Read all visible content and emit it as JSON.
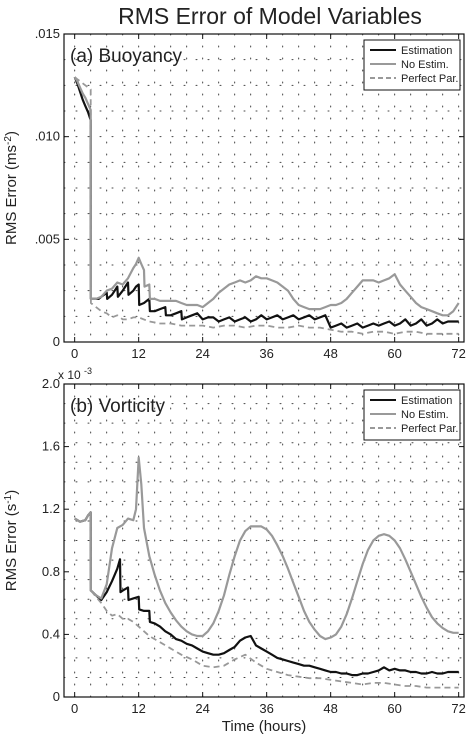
{
  "figure_title": "RMS Error of Model Variables",
  "chart_data": [
    {
      "type": "line",
      "panel_label": "(a)  Buoyancy",
      "title": "RMS Error of Model Variables",
      "xlabel": "",
      "ylabel": "RMS Error (ms",
      "ylabel_sup": "-2",
      "ylabel_tail": ")",
      "xlim": [
        -2,
        73
      ],
      "ylim": [
        0,
        0.015
      ],
      "xticks": [
        0,
        12,
        24,
        36,
        48,
        60,
        72
      ],
      "xtick_labels": [
        "0",
        "12",
        "24",
        "36",
        "48",
        "60",
        "72"
      ],
      "yticks": [
        0,
        0.005,
        0.01,
        0.015
      ],
      "ytick_labels": [
        "0",
        ".005",
        ".010",
        ".015"
      ],
      "grid": "dotted",
      "legend_position": "top-right",
      "series": [
        {
          "name": "Estimation",
          "color": "#111111",
          "dash": "solid",
          "x": [
            0,
            0.5,
            1,
            1.5,
            2,
            2.5,
            3,
            3.05,
            3.5,
            4,
            4.5,
            5,
            5.5,
            6,
            6.1,
            7,
            7.5,
            8,
            8.1,
            9,
            9.5,
            10,
            10.1,
            11,
            11.5,
            12,
            12.1,
            13,
            13.5,
            14,
            14.1,
            15,
            16,
            17,
            17.1,
            18,
            19,
            20,
            20.1,
            21,
            22,
            23,
            24,
            25,
            26,
            27,
            28,
            29,
            30,
            31,
            32,
            33,
            34,
            35,
            36,
            37,
            38,
            39,
            40,
            41,
            42,
            43,
            44,
            45,
            46,
            47,
            48,
            49,
            50,
            51,
            52,
            53,
            54,
            55,
            56,
            57,
            58,
            59,
            60,
            61,
            62,
            63,
            64,
            65,
            66,
            67,
            68,
            69,
            70,
            71,
            72
          ],
          "y": [
            0.0129,
            0.0126,
            0.0122,
            0.0118,
            0.0115,
            0.0112,
            0.0108,
            0.0021,
            0.0021,
            0.0021,
            0.0021,
            0.0022,
            0.0023,
            0.0024,
            0.0021,
            0.0023,
            0.0025,
            0.0027,
            0.0022,
            0.0025,
            0.0027,
            0.0029,
            0.0023,
            0.0025,
            0.0027,
            0.0028,
            0.0018,
            0.0019,
            0.002,
            0.0021,
            0.0015,
            0.0015,
            0.0016,
            0.0017,
            0.0013,
            0.0013,
            0.0014,
            0.0015,
            0.0011,
            0.0012,
            0.0013,
            0.0014,
            0.0011,
            0.0012,
            0.0012,
            0.001,
            0.0011,
            0.0012,
            0.001,
            0.0011,
            0.0012,
            0.001,
            0.0011,
            0.0013,
            0.0011,
            0.0012,
            0.0013,
            0.0011,
            0.0012,
            0.0013,
            0.0011,
            0.0012,
            0.0013,
            0.0011,
            0.0012,
            0.0013,
            0.0007,
            0.0008,
            0.0009,
            0.0007,
            0.0008,
            0.0009,
            0.0007,
            0.0008,
            0.0009,
            0.0008,
            0.0009,
            0.001,
            0.0008,
            0.0009,
            0.0011,
            0.0008,
            0.0009,
            0.0011,
            0.0008,
            0.0009,
            0.0011,
            0.0009,
            0.001,
            0.001,
            0.001
          ]
        },
        {
          "name": "No Estim.",
          "color": "#999999",
          "dash": "solid",
          "x": [
            0,
            0.5,
            1,
            1.5,
            2,
            2.5,
            3,
            3.05,
            4,
            5,
            6,
            7,
            8,
            9,
            10,
            11,
            11.5,
            12,
            12.5,
            13,
            13.1,
            14,
            14.1,
            15,
            16,
            17,
            18,
            19,
            20,
            21,
            22,
            23,
            24,
            25,
            26,
            27,
            28,
            29,
            30,
            31,
            32,
            33,
            34,
            35,
            36,
            37,
            38,
            39,
            40,
            41,
            42,
            43,
            44,
            45,
            46,
            47,
            48,
            49,
            50,
            51,
            52,
            53,
            54,
            55,
            56,
            57,
            58,
            59,
            60,
            61,
            62,
            63,
            64,
            65,
            66,
            67,
            68,
            69,
            70,
            71,
            72
          ],
          "y": [
            0.0129,
            0.0127,
            0.0124,
            0.0121,
            0.0119,
            0.0116,
            0.0113,
            0.0021,
            0.0021,
            0.0022,
            0.0025,
            0.0026,
            0.0029,
            0.0028,
            0.0031,
            0.0036,
            0.0038,
            0.0041,
            0.0038,
            0.0035,
            0.0027,
            0.0028,
            0.0021,
            0.0021,
            0.002,
            0.002,
            0.002,
            0.002,
            0.0019,
            0.0018,
            0.0018,
            0.0018,
            0.0017,
            0.0019,
            0.0021,
            0.0024,
            0.0026,
            0.0028,
            0.0029,
            0.003,
            0.0029,
            0.003,
            0.0032,
            0.0031,
            0.0031,
            0.003,
            0.0029,
            0.0027,
            0.0025,
            0.0021,
            0.0018,
            0.0017,
            0.0016,
            0.0016,
            0.0016,
            0.0017,
            0.0018,
            0.0018,
            0.0019,
            0.0021,
            0.0024,
            0.0027,
            0.003,
            0.003,
            0.003,
            0.0029,
            0.003,
            0.0031,
            0.0033,
            0.0028,
            0.0025,
            0.0022,
            0.0019,
            0.0017,
            0.0016,
            0.0015,
            0.0014,
            0.0013,
            0.0013,
            0.0015,
            0.0019
          ]
        },
        {
          "name": "Perfect Par.",
          "color": "#999999",
          "dash": "dashed",
          "x": [
            0,
            0.5,
            1,
            1.5,
            2,
            2.5,
            3,
            3.05,
            4,
            5,
            6,
            7,
            8,
            9,
            10,
            11,
            12,
            14,
            16,
            18,
            20,
            22,
            24,
            26,
            28,
            30,
            32,
            34,
            36,
            38,
            40,
            42,
            44,
            46,
            48,
            50,
            52,
            54,
            56,
            58,
            60,
            62,
            64,
            66,
            68,
            70,
            72
          ],
          "y": [
            0.0129,
            0.0128,
            0.0127,
            0.0126,
            0.0125,
            0.0124,
            0.0123,
            0.0019,
            0.0017,
            0.0015,
            0.0014,
            0.0012,
            0.0013,
            0.0011,
            0.0011,
            0.0012,
            0.0012,
            0.001,
            0.0009,
            0.0009,
            0.0008,
            0.0008,
            0.0008,
            0.0007,
            0.0008,
            0.0008,
            0.0007,
            0.0008,
            0.0008,
            0.0007,
            0.0007,
            0.0008,
            0.0007,
            0.0007,
            0.0006,
            0.0005,
            0.0005,
            0.0004,
            0.0005,
            0.0005,
            0.0004,
            0.0005,
            0.0005,
            0.0004,
            0.0004,
            0.0004,
            0.0004
          ]
        }
      ]
    },
    {
      "type": "line",
      "panel_label": "(b)  Vorticity",
      "title": "",
      "xlabel": "Time (hours)",
      "ylabel": "RMS Error (s",
      "ylabel_sup": "-1",
      "ylabel_tail": ")",
      "scale_note": "x 10",
      "scale_note_sup": "-3",
      "xlim": [
        -2,
        73
      ],
      "ylim": [
        0,
        2.0
      ],
      "xticks": [
        0,
        12,
        24,
        36,
        48,
        60,
        72
      ],
      "xtick_labels": [
        "0",
        "12",
        "24",
        "36",
        "48",
        "60",
        "72"
      ],
      "yticks": [
        0,
        0.4,
        0.8,
        1.2,
        1.6,
        2.0
      ],
      "ytick_labels": [
        "0",
        "0.4",
        "0.8",
        "1.2",
        "1.6",
        "2.0"
      ],
      "grid": "dotted",
      "legend_position": "top-right",
      "series": [
        {
          "name": "Estimation",
          "color": "#111111",
          "dash": "solid",
          "x": [
            0,
            1,
            2,
            2.5,
            3,
            3.05,
            4,
            5,
            6,
            7,
            8,
            8.5,
            8.6,
            9,
            10,
            10.1,
            11,
            12,
            12.1,
            13,
            14,
            14.1,
            15,
            16,
            17,
            18,
            19,
            20,
            21,
            22,
            23,
            24,
            25,
            26,
            27,
            28,
            29,
            30,
            31,
            32,
            33,
            34,
            35,
            36,
            37,
            38,
            39,
            40,
            41,
            42,
            43,
            44,
            45,
            46,
            47,
            48,
            49,
            50,
            51,
            52,
            53,
            54,
            55,
            56,
            57,
            58,
            59,
            60,
            61,
            62,
            63,
            64,
            65,
            66,
            67,
            68,
            69,
            70,
            71,
            72
          ],
          "y": [
            1.14,
            1.12,
            1.13,
            1.16,
            1.18,
            0.68,
            0.65,
            0.62,
            0.67,
            0.74,
            0.82,
            0.88,
            0.67,
            0.68,
            0.7,
            0.62,
            0.63,
            0.64,
            0.56,
            0.55,
            0.55,
            0.48,
            0.47,
            0.45,
            0.42,
            0.4,
            0.37,
            0.36,
            0.34,
            0.33,
            0.31,
            0.29,
            0.28,
            0.27,
            0.27,
            0.28,
            0.3,
            0.32,
            0.36,
            0.38,
            0.39,
            0.33,
            0.31,
            0.29,
            0.27,
            0.25,
            0.24,
            0.23,
            0.22,
            0.21,
            0.2,
            0.2,
            0.19,
            0.18,
            0.17,
            0.16,
            0.16,
            0.15,
            0.15,
            0.14,
            0.14,
            0.15,
            0.15,
            0.16,
            0.17,
            0.19,
            0.17,
            0.18,
            0.17,
            0.17,
            0.16,
            0.16,
            0.15,
            0.15,
            0.16,
            0.15,
            0.15,
            0.16,
            0.16,
            0.16
          ]
        },
        {
          "name": "No Estim.",
          "color": "#999999",
          "dash": "solid",
          "x": [
            0,
            1,
            2,
            2.5,
            3,
            3.05,
            4,
            5,
            6,
            7,
            8,
            9,
            10,
            11,
            11.5,
            12,
            12.5,
            13,
            14,
            15,
            16,
            17,
            18,
            19,
            20,
            21,
            22,
            23,
            24,
            25,
            26,
            27,
            28,
            29,
            30,
            31,
            32,
            33,
            34,
            35,
            36,
            37,
            38,
            39,
            40,
            41,
            42,
            43,
            44,
            45,
            46,
            47,
            48,
            49,
            50,
            51,
            52,
            53,
            54,
            55,
            56,
            57,
            58,
            59,
            60,
            61,
            62,
            63,
            64,
            65,
            66,
            67,
            68,
            69,
            70,
            71,
            72
          ],
          "y": [
            1.14,
            1.12,
            1.13,
            1.16,
            1.18,
            0.68,
            0.65,
            0.63,
            0.72,
            0.95,
            1.08,
            1.1,
            1.14,
            1.13,
            1.2,
            1.53,
            1.36,
            1.08,
            0.9,
            0.78,
            0.68,
            0.6,
            0.54,
            0.49,
            0.45,
            0.42,
            0.4,
            0.39,
            0.39,
            0.42,
            0.47,
            0.55,
            0.65,
            0.78,
            0.9,
            1.0,
            1.06,
            1.09,
            1.09,
            1.09,
            1.07,
            1.03,
            0.97,
            0.9,
            0.82,
            0.73,
            0.64,
            0.55,
            0.48,
            0.43,
            0.39,
            0.37,
            0.38,
            0.4,
            0.45,
            0.53,
            0.63,
            0.74,
            0.85,
            0.94,
            1.0,
            1.03,
            1.04,
            1.03,
            1.0,
            0.95,
            0.88,
            0.8,
            0.72,
            0.64,
            0.57,
            0.51,
            0.47,
            0.44,
            0.42,
            0.41,
            0.41
          ]
        },
        {
          "name": "Perfect Par.",
          "color": "#999999",
          "dash": "dashed",
          "x": [
            0,
            1,
            2,
            2.5,
            3,
            3.05,
            4,
            5,
            6,
            7,
            8,
            9,
            10,
            11,
            12,
            14,
            16,
            18,
            20,
            22,
            24,
            26,
            28,
            30,
            32,
            34,
            36,
            38,
            40,
            42,
            44,
            46,
            48,
            50,
            52,
            54,
            56,
            58,
            60,
            62,
            64,
            66,
            68,
            70,
            72
          ],
          "y": [
            1.14,
            1.12,
            1.13,
            1.16,
            1.18,
            0.68,
            0.64,
            0.6,
            0.55,
            0.52,
            0.53,
            0.5,
            0.5,
            0.48,
            0.45,
            0.39,
            0.35,
            0.31,
            0.27,
            0.24,
            0.2,
            0.19,
            0.2,
            0.24,
            0.27,
            0.22,
            0.18,
            0.16,
            0.14,
            0.13,
            0.12,
            0.12,
            0.11,
            0.1,
            0.09,
            0.08,
            0.09,
            0.09,
            0.08,
            0.07,
            0.07,
            0.06,
            0.06,
            0.06,
            0.06
          ]
        }
      ]
    }
  ]
}
